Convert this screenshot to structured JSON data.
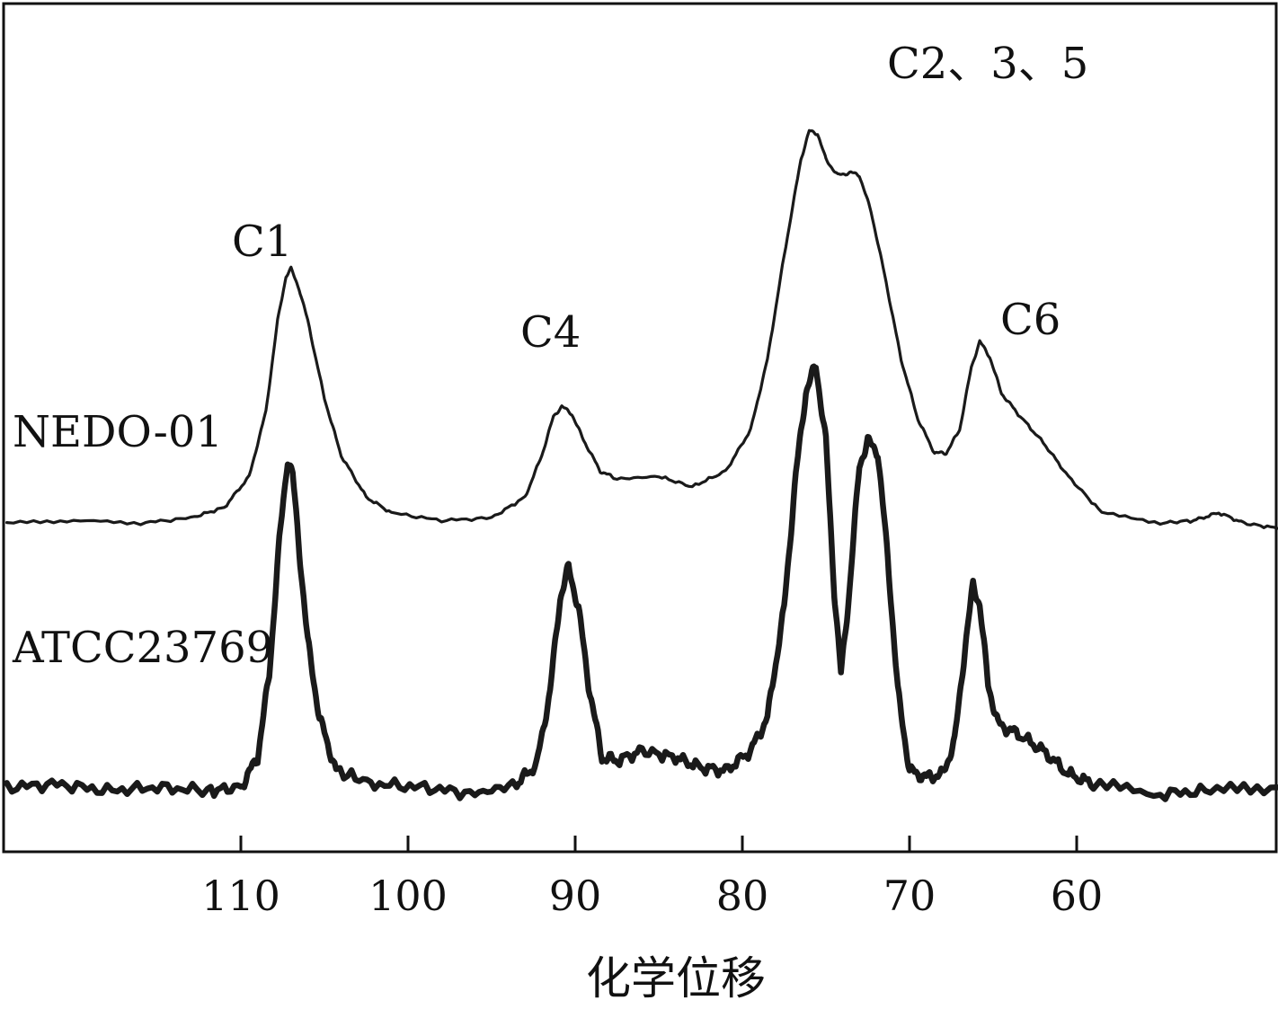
{
  "chart_data": {
    "type": "line",
    "title": "",
    "xlabel": "化学位移",
    "ylabel": "",
    "xlim": [
      124,
      48
    ],
    "x_reversed": true,
    "x_ticks": [
      110,
      100,
      90,
      80,
      70,
      60
    ],
    "x_tick_labels": [
      "110",
      "100",
      "90",
      "80",
      "70",
      "60"
    ],
    "grid": false,
    "legend": "none",
    "series": [
      {
        "name": "NEDO-01",
        "style": "thin",
        "points": [
          [
            124,
            0.02
          ],
          [
            120,
            0.03
          ],
          [
            116,
            0.02
          ],
          [
            113,
            0.04
          ],
          [
            111,
            0.08
          ],
          [
            109.5,
            0.2
          ],
          [
            108.5,
            0.45
          ],
          [
            107.8,
            0.8
          ],
          [
            107.3,
            0.97
          ],
          [
            107.0,
            1.0
          ],
          [
            106.5,
            0.92
          ],
          [
            106,
            0.8
          ],
          [
            105,
            0.5
          ],
          [
            104,
            0.28
          ],
          [
            102.5,
            0.12
          ],
          [
            101,
            0.06
          ],
          [
            98,
            0.03
          ],
          [
            95,
            0.04
          ],
          [
            93,
            0.12
          ],
          [
            92,
            0.28
          ],
          [
            91.3,
            0.43
          ],
          [
            90.8,
            0.47
          ],
          [
            90.2,
            0.44
          ],
          [
            89.5,
            0.34
          ],
          [
            88.5,
            0.22
          ],
          [
            87.5,
            0.19
          ],
          [
            85,
            0.2
          ],
          [
            83,
            0.16
          ],
          [
            81,
            0.22
          ],
          [
            79.5,
            0.38
          ],
          [
            78.5,
            0.65
          ],
          [
            77.5,
            1.05
          ],
          [
            76.5,
            1.42
          ],
          [
            76.0,
            1.53
          ],
          [
            75.5,
            1.52
          ],
          [
            75.0,
            1.42
          ],
          [
            74.3,
            1.36
          ],
          [
            73.5,
            1.37
          ],
          [
            73.0,
            1.36
          ],
          [
            72.3,
            1.22
          ],
          [
            71.5,
            0.98
          ],
          [
            70.5,
            0.65
          ],
          [
            69.5,
            0.42
          ],
          [
            68.5,
            0.29
          ],
          [
            67.8,
            0.29
          ],
          [
            67.0,
            0.38
          ],
          [
            66.3,
            0.62
          ],
          [
            65.8,
            0.72
          ],
          [
            65.2,
            0.66
          ],
          [
            64.5,
            0.52
          ],
          [
            63.5,
            0.44
          ],
          [
            62.0,
            0.33
          ],
          [
            60.5,
            0.2
          ],
          [
            58.5,
            0.06
          ],
          [
            55,
            0.02
          ],
          [
            53,
            0.03
          ],
          [
            51.5,
            0.06
          ],
          [
            50,
            0.02
          ],
          [
            48,
            0.0
          ]
        ]
      },
      {
        "name": "ATCC23769",
        "style": "thick",
        "points": [
          [
            124,
            0.01
          ],
          [
            121,
            0.02
          ],
          [
            118,
            0.0
          ],
          [
            115,
            0.01
          ],
          [
            112,
            0.0
          ],
          [
            110,
            0.01
          ],
          [
            109,
            0.1
          ],
          [
            108.3,
            0.35
          ],
          [
            107.7,
            0.75
          ],
          [
            107.2,
            1.0
          ],
          [
            106.9,
            0.95
          ],
          [
            106.5,
            0.72
          ],
          [
            106,
            0.45
          ],
          [
            105.3,
            0.22
          ],
          [
            104.3,
            0.06
          ],
          [
            102,
            0.02
          ],
          [
            99,
            0.01
          ],
          [
            96,
            -0.01
          ],
          [
            93.5,
            0.02
          ],
          [
            92.3,
            0.08
          ],
          [
            91.5,
            0.3
          ],
          [
            90.9,
            0.58
          ],
          [
            90.4,
            0.67
          ],
          [
            89.8,
            0.55
          ],
          [
            89.2,
            0.32
          ],
          [
            88.4,
            0.1
          ],
          [
            87.5,
            0.09
          ],
          [
            86,
            0.12
          ],
          [
            84,
            0.1
          ],
          [
            82.5,
            0.07
          ],
          [
            81,
            0.06
          ],
          [
            79.5,
            0.12
          ],
          [
            78.5,
            0.22
          ],
          [
            77.5,
            0.55
          ],
          [
            76.8,
            0.95
          ],
          [
            76.2,
            1.2
          ],
          [
            75.6,
            1.28
          ],
          [
            75.0,
            1.05
          ],
          [
            74.5,
            0.6
          ],
          [
            74.1,
            0.35
          ],
          [
            73.6,
            0.6
          ],
          [
            73.0,
            0.98
          ],
          [
            72.5,
            1.05
          ],
          [
            71.9,
            1.02
          ],
          [
            71.3,
            0.7
          ],
          [
            70.7,
            0.3
          ],
          [
            70,
            0.06
          ],
          [
            69,
            0.04
          ],
          [
            68,
            0.05
          ],
          [
            67.3,
            0.15
          ],
          [
            66.7,
            0.42
          ],
          [
            66.2,
            0.62
          ],
          [
            65.8,
            0.56
          ],
          [
            65.3,
            0.32
          ],
          [
            64.7,
            0.2
          ],
          [
            63.5,
            0.17
          ],
          [
            62.0,
            0.12
          ],
          [
            60.5,
            0.05
          ],
          [
            59,
            0.02
          ],
          [
            55,
            -0.01
          ],
          [
            52,
            0.0
          ],
          [
            48,
            0.01
          ]
        ]
      }
    ],
    "annotations": [
      {
        "text": "C1",
        "x": 107.0
      },
      {
        "text": "C4",
        "x": 90.6
      },
      {
        "text": "C2、3、5",
        "x": 68.0
      },
      {
        "text": "C6",
        "x": 63.5
      }
    ]
  }
}
